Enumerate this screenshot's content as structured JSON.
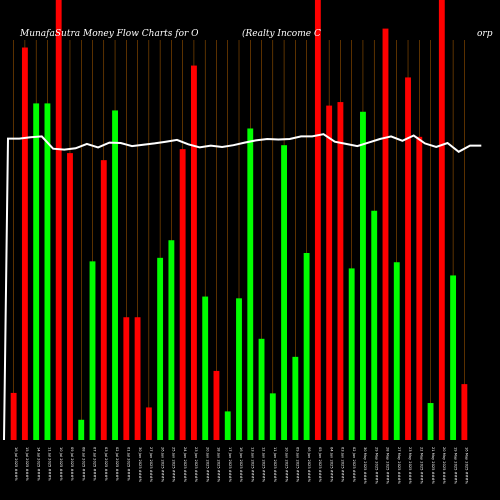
{
  "chart_data": {
    "type": "bar",
    "title_left": "MunafaSutra  Money Flow  Charts for O",
    "title_right": "(Realty Income   C",
    "title_far_right": "orp",
    "colors": {
      "up": "#00ff00",
      "down": "#ff0000",
      "line": "#ffffff",
      "grid": "#ff8c00",
      "background": "#000000"
    },
    "ylim": [
      0,
      100
    ],
    "line_range": [
      0,
      100
    ],
    "bars": [
      {
        "date": "16 Jul 2025 ###%",
        "value": 10.7,
        "color": "red"
      },
      {
        "date": "15 Jul 2025 ###%",
        "value": 89.2,
        "color": "red"
      },
      {
        "date": "14 Jul 2025 ###%",
        "value": 76.5,
        "color": "green"
      },
      {
        "date": "11 Jul 2025 ###%",
        "value": 76.5,
        "color": "green"
      },
      {
        "date": "10 Jul 2025 ###%",
        "value": 100,
        "color": "red"
      },
      {
        "date": "09 Jul 2025 ###%",
        "value": 65.2,
        "color": "red"
      },
      {
        "date": "08 Jul 2025 ###%",
        "value": 4.6,
        "color": "green"
      },
      {
        "date": "07 Jul 2025 ###%",
        "value": 40.6,
        "color": "green"
      },
      {
        "date": "03 Jul 2025 ###%",
        "value": 63.6,
        "color": "red"
      },
      {
        "date": "02 Jul 2025 ###%",
        "value": 74.9,
        "color": "green"
      },
      {
        "date": "01 Jul 2025 ###%",
        "value": 27.9,
        "color": "red"
      },
      {
        "date": "30 Jun 2025 ###%",
        "value": 27.9,
        "color": "red"
      },
      {
        "date": "27 Jun 2025 ###%",
        "value": 7.4,
        "color": "red"
      },
      {
        "date": "26 Jun 2025 ###%",
        "value": 41.4,
        "color": "green"
      },
      {
        "date": "25 Jun 2025 ###%",
        "value": 45.4,
        "color": "green"
      },
      {
        "date": "24 Jun 2025 ###%",
        "value": 66.1,
        "color": "red"
      },
      {
        "date": "23 Jun 2025 ###%",
        "value": 85.1,
        "color": "red"
      },
      {
        "date": "20 Jun 2025 ###%",
        "value": 32.6,
        "color": "green"
      },
      {
        "date": "18 Jun 2025 ###%",
        "value": 15.7,
        "color": "red"
      },
      {
        "date": "17 Jun 2025 ###%",
        "value": 6.5,
        "color": "green"
      },
      {
        "date": "16 Jun 2025 ###%",
        "value": 32.2,
        "color": "green"
      },
      {
        "date": "13 Jun 2025 ###%",
        "value": 70.8,
        "color": "green"
      },
      {
        "date": "12 Jun 2025 ###%",
        "value": 23.0,
        "color": "green"
      },
      {
        "date": "11 Jun 2025 ###%",
        "value": 10.6,
        "color": "green"
      },
      {
        "date": "10 Jun 2025 ###%",
        "value": 67.0,
        "color": "green"
      },
      {
        "date": "09 Jun 2025 ###%",
        "value": 18.9,
        "color": "green"
      },
      {
        "date": "06 Jun 2025 ###%",
        "value": 42.5,
        "color": "green"
      },
      {
        "date": "05 Jun 2025 ###%",
        "value": 100,
        "color": "red"
      },
      {
        "date": "04 Jun 2025 ###%",
        "value": 76.0,
        "color": "red"
      },
      {
        "date": "03 Jun 2025 ###%",
        "value": 76.8,
        "color": "red"
      },
      {
        "date": "02 Jun 2025 ###%",
        "value": 39.0,
        "color": "green"
      },
      {
        "date": "30 May 2025 ###%",
        "value": 74.6,
        "color": "green"
      },
      {
        "date": "29 May 2025 ###%",
        "value": 52.1,
        "color": "green"
      },
      {
        "date": "28 May 2025 ###%",
        "value": 93.5,
        "color": "red"
      },
      {
        "date": "27 May 2025 ###%",
        "value": 40.4,
        "color": "green"
      },
      {
        "date": "23 May 2025 ###%",
        "value": 82.4,
        "color": "red"
      },
      {
        "date": "22 May 2025 ###%",
        "value": 68.9,
        "color": "red"
      },
      {
        "date": "21 May 2025 ###%",
        "value": 8.4,
        "color": "green"
      },
      {
        "date": "20 May 2025 ###%",
        "value": 100,
        "color": "red"
      },
      {
        "date": "19 May 2025 ###%",
        "value": 37.4,
        "color": "green"
      },
      {
        "date": "16 May 2025 ###%",
        "value": 12.7,
        "color": "red"
      }
    ],
    "money_flow_line": [
      68.5,
      68.5,
      68.8,
      69.0,
      66.2,
      66.0,
      66.3,
      67.3,
      66.5,
      67.6,
      67.5,
      66.8,
      67.1,
      67.4,
      67.8,
      68.2,
      67.2,
      66.5,
      66.9,
      66.6,
      67.0,
      67.6,
      68.1,
      68.4,
      68.3,
      68.4,
      69.0,
      69.0,
      69.5,
      67.8,
      67.3,
      66.8,
      67.6,
      68.4,
      69.0,
      68.0,
      69.2,
      67.4,
      66.6,
      67.5,
      65.5,
      66.9,
      66.9
    ],
    "line_x_offsets": [
      0,
      0.3,
      0.5,
      0.7,
      1,
      1.3,
      1.6,
      1.9,
      2.2,
      2.5,
      2.8,
      3.1,
      3.4,
      3.7,
      4,
      4.3,
      4.6,
      4.9,
      5.2,
      5.5,
      5.8,
      6.1,
      6.4,
      6.7,
      7,
      7.3,
      7.6,
      7.9,
      8.2,
      8.5,
      8.8,
      9.1,
      9.4,
      9.7,
      10,
      10.3,
      10.6,
      10.9,
      11.2,
      11.5,
      11.8,
      12.1,
      12.4
    ],
    "grid": "vertical"
  }
}
